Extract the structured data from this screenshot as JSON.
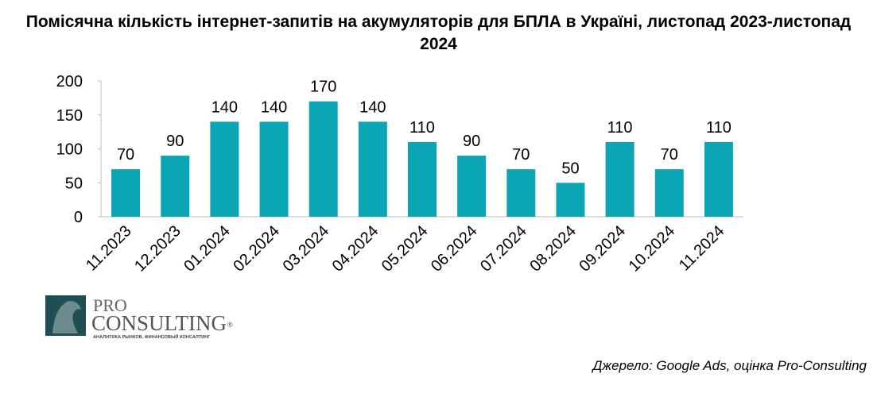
{
  "chart_data": {
    "type": "bar",
    "title": "Помісячна кількість інтернет-запитів на акумуляторів для БПЛА в Україні, листопад 2023-листопад 2024",
    "categories": [
      "11.2023",
      "12.2023",
      "01.2024",
      "02.2024",
      "03.2024",
      "04.2024",
      "05.2024",
      "06.2024",
      "07.2024",
      "08.2024",
      "09.2024",
      "10.2024",
      "11.2024"
    ],
    "values": [
      70,
      90,
      140,
      140,
      170,
      140,
      110,
      90,
      70,
      50,
      110,
      70,
      110
    ],
    "color": "#0aa6b6",
    "ylim": [
      0,
      200
    ],
    "yticks": [
      0,
      50,
      100,
      150,
      200
    ],
    "grid": false,
    "source": "Джерело: Google Ads, оцінка Pro-Consulting"
  },
  "logo": {
    "line1": "PRO",
    "line2": "CONSULTING",
    "mark": "®",
    "tagline": "АНАЛИТИКА РЫНКОВ. ФИНАНСОВЫЙ КОНСАЛТИНГ"
  }
}
